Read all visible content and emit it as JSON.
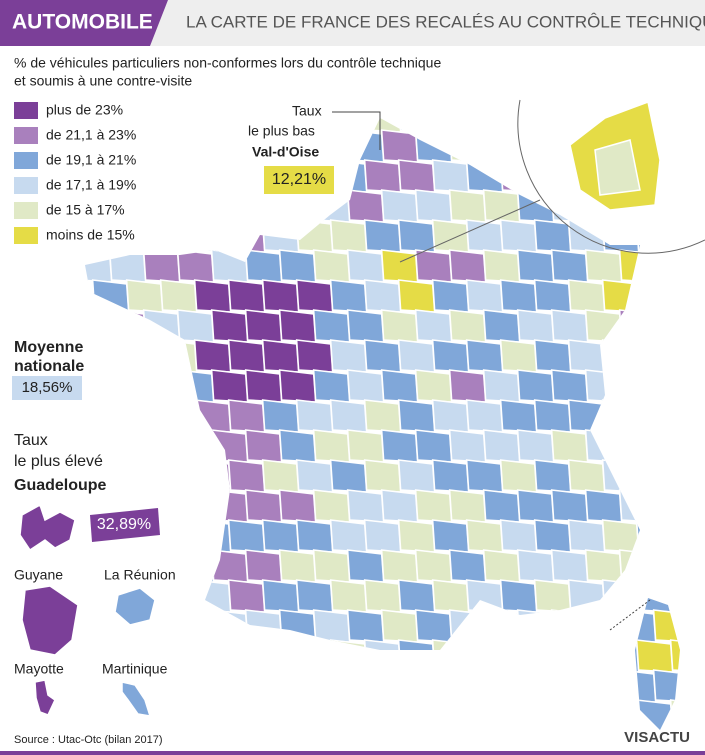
{
  "header": {
    "tag": "AUTOMOBILE",
    "title": "LA CARTE DE FRANCE DES RECALÉS AU CONTRÔLE TECHNIQUE"
  },
  "subtitle": [
    "% de véhicules particuliers non-conformes lors du contrôle technique",
    "et soumis à une contre-visite"
  ],
  "legend": {
    "items": [
      {
        "label": "plus de 23%",
        "color": "#7b3f98"
      },
      {
        "label": "de 21,1 à 23%",
        "color": "#a980bd"
      },
      {
        "label": "de 19,1 à 21%",
        "color": "#80a7d9"
      },
      {
        "label": "de 17,1 à 19%",
        "color": "#c7daef"
      },
      {
        "label": "de 15 à 17%",
        "color": "#e0e9c6"
      },
      {
        "label": "moins de 15%",
        "color": "#e5dc46"
      }
    ]
  },
  "lowest": {
    "lines": [
      "Taux",
      "le plus bas"
    ],
    "place": "Val-d'Oise",
    "value": "12,21%"
  },
  "average": {
    "lines": [
      "Moyenne",
      "nationale"
    ],
    "value": "18,56%"
  },
  "highest": {
    "lines": [
      "Taux",
      "le plus élevé"
    ],
    "place": "Guadeloupe",
    "value": "32,89%"
  },
  "overseas": [
    "Guyane",
    "La Réunion",
    "Mayotte",
    "Martinique"
  ],
  "source": "Source : Utac-Otc (bilan 2017)",
  "logo": "VISACTU"
}
